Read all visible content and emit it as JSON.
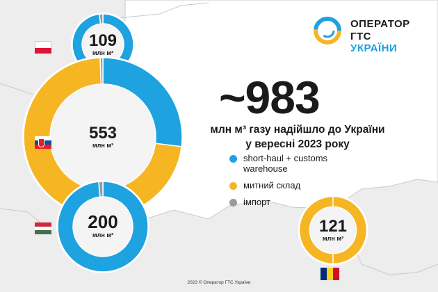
{
  "headline": "~983",
  "subtitle_line1": "млн м³ газу надійшло до України",
  "subtitle_line2": "у вересні 2023 року",
  "logo": {
    "line1": "ОПЕРАТОР",
    "line2_prefix": "ГТС ",
    "line2_accent": "УКРАЇНИ"
  },
  "footer": "2023 © Оператор ГТС України",
  "colors": {
    "short_haul": "#1ea2e0",
    "customs": "#f6b623",
    "import": "#9a9a9a",
    "background": "#ededed"
  },
  "chart_data": {
    "type": "pie",
    "unit": "млн м³",
    "series_names": [
      "short-haul + customs warehouse",
      "митний склад",
      "імпорт"
    ],
    "countries": [
      {
        "flag": "Poland",
        "total": 109,
        "unit": "млн м³",
        "slices": [
          {
            "series": "short-haul + customs warehouse",
            "value": 107
          },
          {
            "series": "імпорт",
            "value": 2
          }
        ]
      },
      {
        "flag": "Slovakia",
        "total": 553,
        "unit": "млн м³",
        "slices": [
          {
            "series": "short-haul + customs warehouse",
            "value": 149
          },
          {
            "series": "митний склад",
            "value": 401
          },
          {
            "series": "імпорт",
            "value": 3
          }
        ]
      },
      {
        "flag": "Hungary",
        "total": 200,
        "unit": "млн м³",
        "slices": [
          {
            "series": "short-haul + customs warehouse",
            "value": 197
          },
          {
            "series": "імпорт",
            "value": 3
          }
        ]
      },
      {
        "flag": "Romania",
        "total": 121,
        "unit": "млн м³",
        "slices": [
          {
            "series": "митний склад",
            "value": 121
          }
        ]
      }
    ]
  },
  "legend": [
    {
      "label": "short-haul + customs\nwarehouse",
      "color": "#1ea2e0"
    },
    {
      "label": "митний склад",
      "color": "#f6b623"
    },
    {
      "label": "імпорт",
      "color": "#9a9a9a"
    }
  ]
}
